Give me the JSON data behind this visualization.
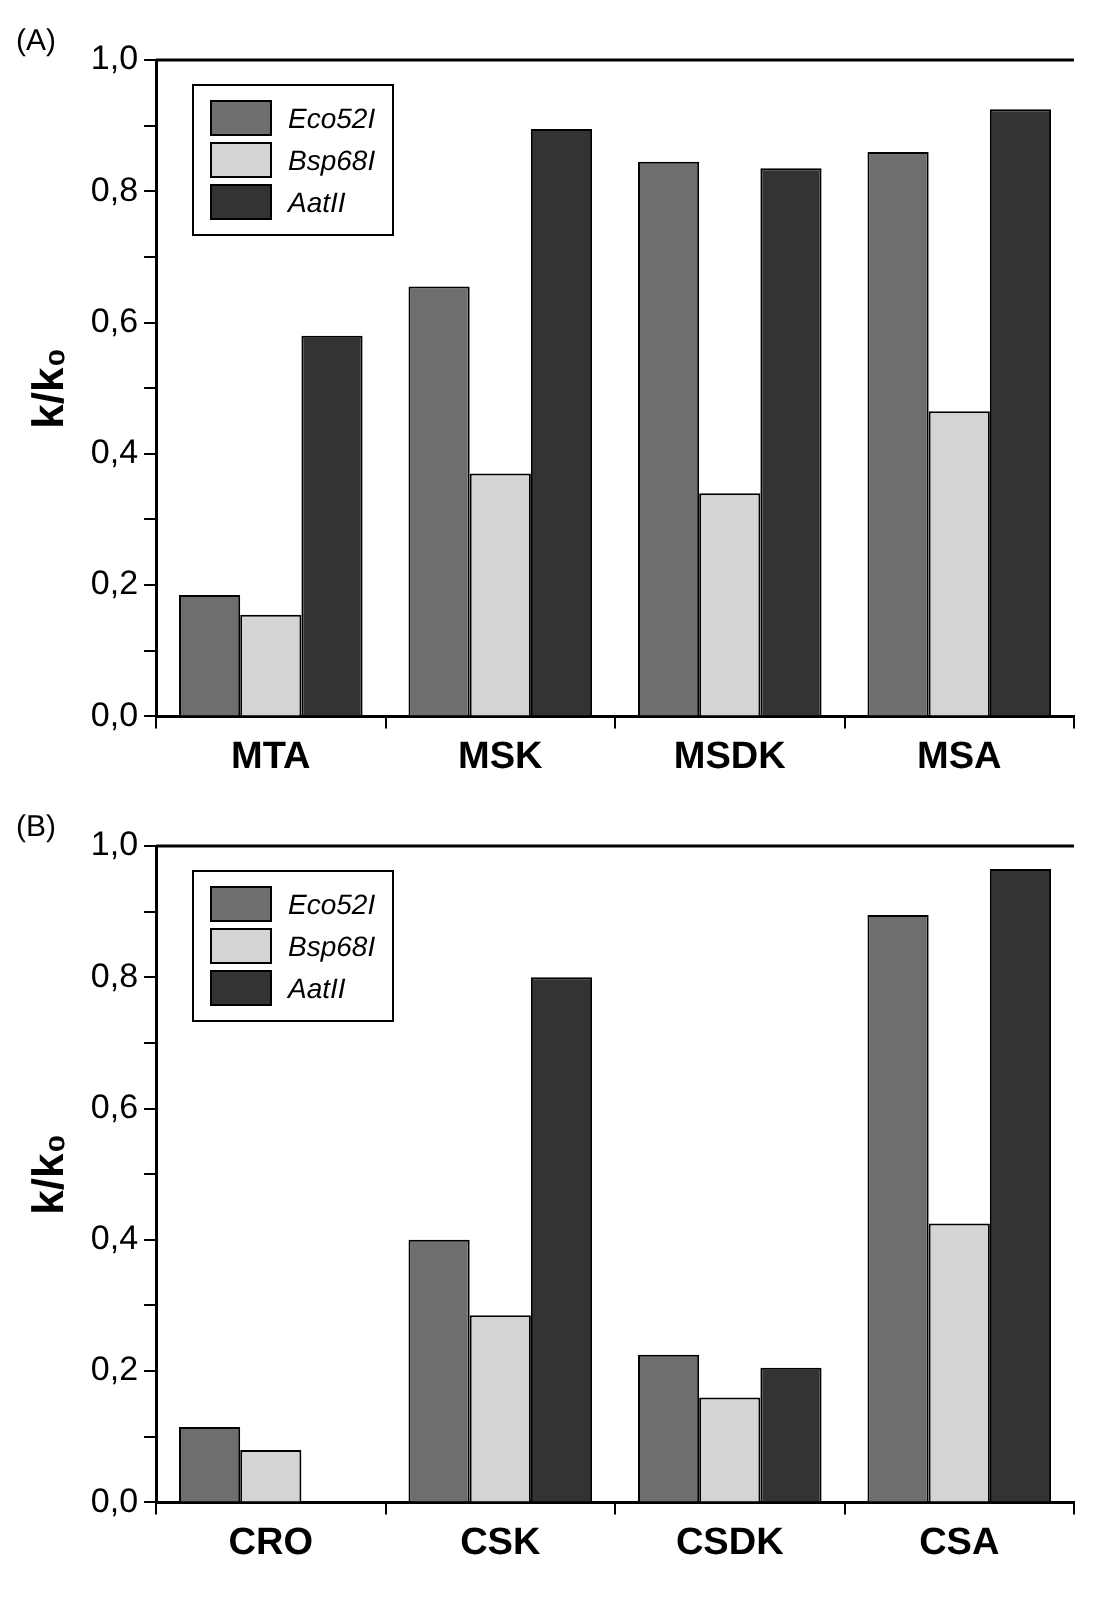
{
  "chart_data": [
    {
      "type": "bar",
      "title": "(A)",
      "ylabel": "k/k₀",
      "categories": [
        "MTA",
        "MSK",
        "MSDK",
        "MSA"
      ],
      "series": [
        {
          "name": "Eco52I",
          "color": "#6e6e6e",
          "values": [
            0.185,
            0.655,
            0.845,
            0.86
          ]
        },
        {
          "name": "Bsp68I",
          "color": "#d4d4d4",
          "values": [
            0.155,
            0.37,
            0.34,
            0.465
          ]
        },
        {
          "name": "AatII",
          "color": "#333333",
          "values": [
            0.58,
            0.895,
            0.835,
            0.925
          ]
        }
      ],
      "ylim": [
        0,
        1
      ],
      "yticks": [
        {
          "value": 0,
          "label": "0,0"
        },
        {
          "value": 0.1,
          "label": null
        },
        {
          "value": 0.2,
          "label": "0,2"
        },
        {
          "value": 0.3,
          "label": null
        },
        {
          "value": 0.4,
          "label": "0,4"
        },
        {
          "value": 0.5,
          "label": null
        },
        {
          "value": 0.6,
          "label": "0,6"
        },
        {
          "value": 0.7,
          "label": null
        },
        {
          "value": 0.8,
          "label": "0,8"
        },
        {
          "value": 0.9,
          "label": null
        },
        {
          "value": 1,
          "label": "1,0"
        }
      ],
      "grid": false,
      "legend": "top left"
    },
    {
      "type": "bar",
      "title": "(B)",
      "ylabel": "k/k₀",
      "categories": [
        "CRO",
        "CSK",
        "CSDK",
        "CSA"
      ],
      "series": [
        {
          "name": "Eco52I",
          "color": "#6e6e6e",
          "values": [
            0.115,
            0.4,
            0.225,
            0.895
          ]
        },
        {
          "name": "Bsp68I",
          "color": "#d4d4d4",
          "values": [
            0.08,
            0.285,
            0.16,
            0.425
          ]
        },
        {
          "name": "AatII",
          "color": "#333333",
          "values": [
            null,
            0.8,
            0.205,
            0.965
          ]
        }
      ],
      "ylim": [
        0,
        1
      ],
      "yticks": [
        {
          "value": 0,
          "label": "0,0"
        },
        {
          "value": 0.1,
          "label": null
        },
        {
          "value": 0.2,
          "label": "0,2"
        },
        {
          "value": 0.3,
          "label": null
        },
        {
          "value": 0.4,
          "label": "0,4"
        },
        {
          "value": 0.5,
          "label": null
        },
        {
          "value": 0.6,
          "label": "0,6"
        },
        {
          "value": 0.7,
          "label": null
        },
        {
          "value": 0.8,
          "label": "0,8"
        },
        {
          "value": 0.9,
          "label": null
        },
        {
          "value": 1,
          "label": "1,0"
        }
      ],
      "grid": false,
      "legend": "top left"
    }
  ]
}
